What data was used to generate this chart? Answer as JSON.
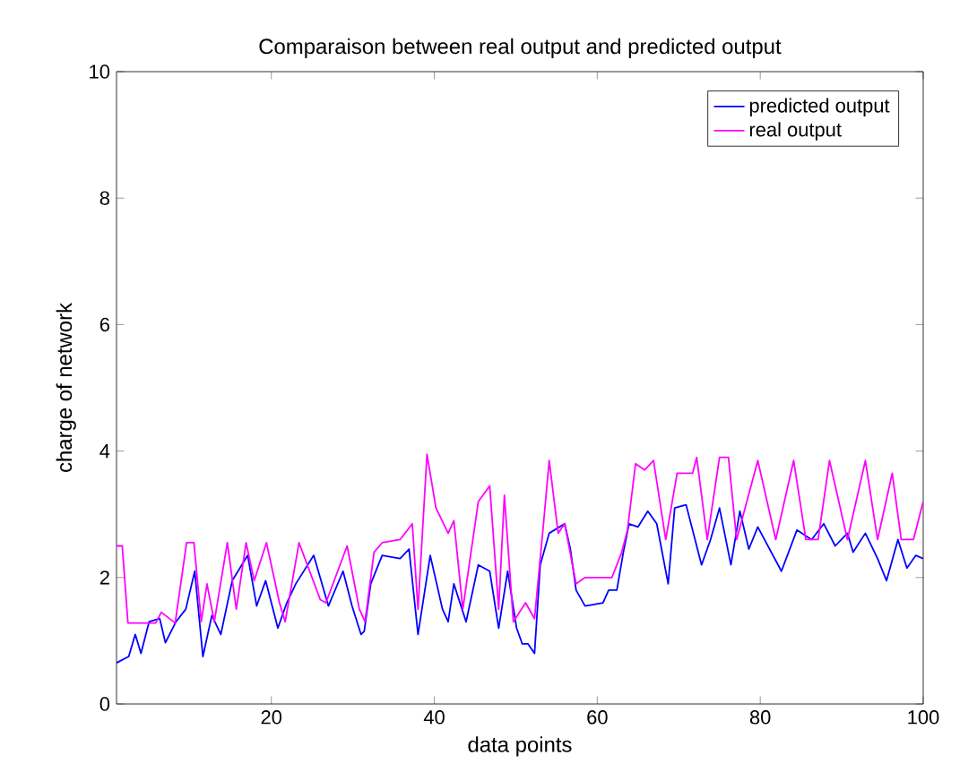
{
  "chart_data": {
    "type": "line",
    "title": "Comparaison between real output and predicted output",
    "xlabel": "data points",
    "ylabel": "charge of network",
    "xlim": [
      1,
      100
    ],
    "ylim": [
      0,
      10
    ],
    "xticks": [
      20,
      40,
      60,
      80,
      100
    ],
    "yticks": [
      0,
      2,
      4,
      6,
      8,
      10
    ],
    "grid": false,
    "legend": "top right",
    "marker": "none",
    "line_style": "solid",
    "series": [
      {
        "name": "predicted output",
        "color": "#0000ff",
        "x": [
          1,
          2.5,
          3.3,
          4,
          5,
          6.3,
          7,
          8.3,
          9.5,
          10.6,
          11.6,
          12.7,
          13.8,
          15.2,
          17.1,
          18.2,
          19.3,
          20.8,
          21.9,
          23,
          25.2,
          27,
          28.8,
          29.9,
          31,
          31.4,
          32.2,
          33.6,
          35.8,
          36.9,
          38,
          39.5,
          41,
          41.7,
          42.4,
          43.9,
          45.4,
          46.8,
          47.9,
          49,
          50.1,
          50.8,
          51.5,
          52.3,
          53,
          54.1,
          56,
          56.7,
          57.4,
          58.5,
          60.7,
          61.4,
          62.4,
          63.2,
          63.9,
          65,
          66.2,
          67.3,
          68.7,
          69.5,
          70.9,
          72.8,
          73.9,
          75,
          76.4,
          77.5,
          78.6,
          79.7,
          82.6,
          84.5,
          86.3,
          87.8,
          89.2,
          90.7,
          91.4,
          92.9,
          94.4,
          95.5,
          96.9,
          98,
          99.1,
          100
        ],
        "values": [
          0.65,
          0.75,
          1.1,
          0.8,
          1.3,
          1.35,
          0.97,
          1.3,
          1.5,
          2.1,
          0.75,
          1.4,
          1.1,
          1.95,
          2.35,
          1.55,
          1.95,
          1.2,
          1.6,
          1.9,
          2.35,
          1.55,
          2.1,
          1.55,
          1.1,
          1.15,
          1.9,
          2.35,
          2.3,
          2.45,
          1.1,
          2.35,
          1.5,
          1.3,
          1.9,
          1.3,
          2.2,
          2.1,
          1.2,
          2.1,
          1.2,
          0.95,
          0.95,
          0.8,
          2.2,
          2.7,
          2.85,
          2.45,
          1.8,
          1.55,
          1.6,
          1.8,
          1.8,
          2.4,
          2.85,
          2.8,
          3.05,
          2.85,
          1.9,
          3.1,
          3.15,
          2.2,
          2.6,
          3.1,
          2.2,
          3.05,
          2.45,
          2.8,
          2.1,
          2.75,
          2.6,
          2.85,
          2.5,
          2.7,
          2.4,
          2.7,
          2.3,
          1.95,
          2.6,
          2.15,
          2.35,
          2.3
        ]
      },
      {
        "name": "real output",
        "color": "#ff00ff",
        "x": [
          1,
          1.7,
          2.4,
          5.8,
          6.5,
          8.2,
          9.6,
          10.5,
          11.4,
          12.1,
          13,
          14.6,
          15.7,
          16.9,
          17.9,
          19.4,
          21,
          21.7,
          23.4,
          26,
          26.7,
          29.3,
          30.8,
          31.5,
          32.6,
          33.6,
          35.8,
          37.3,
          38,
          39.1,
          40.2,
          41.7,
          42.4,
          43.5,
          45.4,
          46.8,
          47.9,
          48.6,
          49.7,
          51.2,
          52.3,
          53.4,
          54.1,
          55.2,
          56,
          57.4,
          58.5,
          61.8,
          63,
          63.7,
          64.7,
          65.8,
          66.9,
          68.4,
          69.8,
          71.7,
          72.2,
          73.5,
          75,
          76.1,
          77.1,
          79.7,
          81.9,
          84.1,
          85.6,
          87.1,
          88.5,
          90.7,
          92.9,
          94.4,
          96.2,
          97.3,
          98.8,
          100
        ],
        "values": [
          2.5,
          2.5,
          1.28,
          1.28,
          1.45,
          1.28,
          2.55,
          2.55,
          1.3,
          1.9,
          1.3,
          2.55,
          1.5,
          2.55,
          1.95,
          2.55,
          1.6,
          1.3,
          2.55,
          1.65,
          1.6,
          2.5,
          1.5,
          1.3,
          2.4,
          2.55,
          2.6,
          2.85,
          1.5,
          3.95,
          3.1,
          2.7,
          2.9,
          1.5,
          3.2,
          3.45,
          1.5,
          3.3,
          1.3,
          1.6,
          1.35,
          2.85,
          3.85,
          2.7,
          2.85,
          1.9,
          2,
          2,
          2.4,
          2.75,
          3.8,
          3.7,
          3.85,
          2.6,
          3.65,
          3.65,
          3.9,
          2.6,
          3.9,
          3.9,
          2.6,
          3.85,
          2.6,
          3.85,
          2.6,
          2.6,
          3.85,
          2.6,
          3.85,
          2.6,
          3.65,
          2.6,
          2.6,
          3.2
        ]
      }
    ]
  }
}
